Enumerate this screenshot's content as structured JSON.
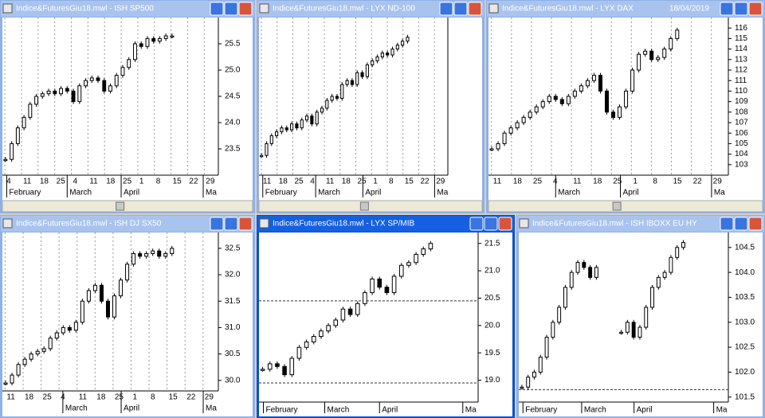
{
  "windows": [
    {
      "type": "candlestick",
      "title": "Indice&FuturesGiu18.mwl - ISH SP500",
      "ylim": [
        23.0,
        26.0
      ],
      "yticks": [
        23.5,
        {
          "value": 24,
          "label": "24.0"
        },
        24.5,
        {
          "value": 25,
          "label": "25.0"
        },
        25.5
      ],
      "days": [
        "4",
        "11",
        "18",
        "25",
        "4",
        "11",
        "18",
        "25",
        "1",
        "8",
        "15",
        "22",
        "29"
      ],
      "months": [
        "February",
        "March",
        "April",
        "Ma"
      ],
      "closes": [
        23.3,
        23.6,
        23.9,
        24.1,
        24.35,
        24.5,
        24.55,
        24.6,
        24.55,
        24.65,
        24.6,
        24.4,
        24.7,
        24.8,
        24.85,
        24.8,
        24.6,
        24.7,
        24.9,
        25.05,
        25.2,
        25.5,
        25.45,
        25.6,
        25.55,
        25.6,
        25.65,
        25.65
      ]
    },
    {
      "type": "candlestick",
      "title": "Indice&FuturesGiu18.mwl - LYX ND-100",
      "ylim": [
        10.0,
        14.0
      ],
      "days": [
        "11",
        "18",
        "25",
        "4",
        "11",
        "18",
        "25",
        "1",
        "8",
        "15",
        "22",
        "29"
      ],
      "months": [
        "February",
        "March",
        "April",
        "Ma"
      ],
      "closes": [
        10.5,
        10.8,
        11.0,
        11.1,
        11.2,
        11.15,
        11.3,
        11.2,
        11.4,
        11.5,
        11.3,
        11.6,
        11.7,
        11.9,
        12.0,
        11.95,
        12.3,
        12.4,
        12.3,
        12.6,
        12.5,
        12.8,
        12.9,
        13.0,
        13.1,
        13.05,
        13.2,
        13.3,
        13.4,
        13.5
      ]
    },
    {
      "type": "candlestick",
      "title": "Indice&FuturesGiu18.mwl - LYX DAX",
      "date": "18/04/2019",
      "ylim": [
        102,
        117
      ],
      "yticks": [
        103,
        104,
        105,
        106,
        107,
        108,
        109,
        110,
        111,
        112,
        113,
        114,
        115,
        116
      ],
      "days": [
        "11",
        "18",
        "25",
        "4",
        "11",
        "18",
        "25",
        "1",
        "8",
        "15",
        "22",
        "29"
      ],
      "months": [
        "March",
        "April",
        "Ma"
      ],
      "closes": [
        104.5,
        105,
        106,
        106.5,
        107,
        107.5,
        108,
        108.5,
        109,
        109.5,
        109.2,
        108.8,
        109.5,
        110,
        110.5,
        111,
        111.5,
        110,
        108,
        107.5,
        108.5,
        110,
        112,
        113.5,
        113.8,
        113,
        113.2,
        114,
        115,
        115.8
      ]
    },
    {
      "type": "candlestick",
      "title": "Indice&FuturesGiu18.mwl - ISH DJ SX50",
      "ylim": [
        29.8,
        32.8
      ],
      "yticks": [
        {
          "value": 30,
          "label": "30.0"
        },
        30.5,
        {
          "value": 31,
          "label": "31.0"
        },
        31.5,
        {
          "value": 32,
          "label": "32.0"
        },
        32.5
      ],
      "days": [
        "11",
        "18",
        "25",
        "4",
        "11",
        "18",
        "25",
        "1",
        "8",
        "15",
        "22",
        "29"
      ],
      "months": [
        "March",
        "April",
        "Ma"
      ],
      "closes": [
        29.95,
        30.1,
        30.3,
        30.4,
        30.5,
        30.55,
        30.6,
        30.8,
        30.9,
        31.0,
        30.95,
        31.1,
        31.5,
        31.7,
        31.8,
        31.5,
        31.2,
        31.6,
        31.9,
        32.2,
        32.4,
        32.35,
        32.4,
        32.45,
        32.35,
        32.4,
        32.5
      ]
    },
    {
      "type": "candlestick",
      "title": "Indice&FuturesGiu18.mwl - LYX SP/MIB",
      "active": true,
      "ylim": [
        18.6,
        21.7
      ],
      "yticks": [
        {
          "value": 19,
          "label": "19.0"
        },
        19.5,
        {
          "value": 20,
          "label": "20.0"
        },
        20.5,
        {
          "value": 21,
          "label": "21.0"
        },
        21.5
      ],
      "months": [
        "February",
        "March",
        "April",
        "Ma"
      ],
      "hlines": [
        20.45,
        18.95
      ],
      "closes": [
        19.2,
        19.3,
        19.25,
        19.1,
        19.4,
        19.6,
        19.7,
        19.8,
        19.9,
        20.0,
        20.1,
        20.3,
        20.2,
        20.4,
        20.6,
        20.85,
        20.7,
        20.6,
        20.9,
        21.1,
        21.15,
        21.3,
        21.4,
        21.5
      ]
    },
    {
      "type": "candlestick",
      "title": "Indice&FuturesGiu18.mwl - ISH IBOXX EU HY",
      "ylim": [
        101.4,
        104.8
      ],
      "yticks": [
        101.5,
        {
          "value": 102,
          "label": "102.0"
        },
        102.5,
        {
          "value": 103,
          "label": "103.0"
        },
        103.5,
        {
          "value": 104,
          "label": "104.0"
        },
        104.5
      ],
      "months": [
        "February",
        "March",
        "April",
        "Ma"
      ],
      "hlines": [
        101.65
      ],
      "closes": [
        101.7,
        101.9,
        102.0,
        102.3,
        102.7,
        103.0,
        103.3,
        103.7,
        104.0,
        104.2,
        104.1,
        103.9,
        104.1,
        null,
        null,
        null,
        102.8,
        103.0,
        102.7,
        102.9,
        103.3,
        103.7,
        103.9,
        104.0,
        104.3,
        104.5,
        104.6
      ]
    }
  ]
}
